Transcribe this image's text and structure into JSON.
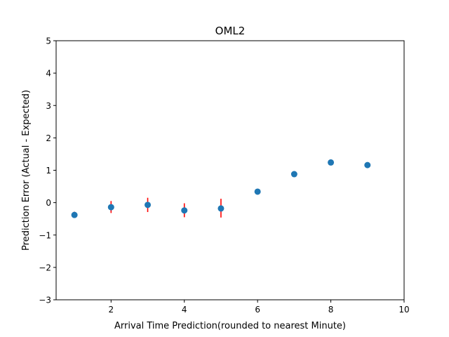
{
  "chart_data": {
    "type": "scatter",
    "title": "OML2",
    "xlabel": "Arrival Time Prediction(rounded to nearest Minute)",
    "ylabel": "Prediction Error (Actual - Expected)",
    "xlim": [
      0.5,
      10
    ],
    "ylim": [
      -3,
      5
    ],
    "x_ticks": [
      2,
      4,
      6,
      8,
      10
    ],
    "y_ticks": [
      -3,
      -2,
      -1,
      0,
      1,
      2,
      3,
      4,
      5
    ],
    "x_tick_labels": [
      "2",
      "4",
      "6",
      "8",
      "10"
    ],
    "y_tick_labels": [
      "−3",
      "−2",
      "−1",
      "0",
      "1",
      "2",
      "3",
      "4",
      "5"
    ],
    "grid": false,
    "point_color": "#1f77b4",
    "errorbar_color": "#ff0000",
    "x": [
      1,
      2,
      3,
      4,
      5,
      6,
      7,
      8,
      9
    ],
    "y": [
      -0.38,
      -0.14,
      -0.07,
      -0.24,
      -0.18,
      0.34,
      0.88,
      1.24,
      1.16
    ],
    "error_bars": [
      {
        "x": 1,
        "low": -0.47,
        "high": -0.28
      },
      {
        "x": 2,
        "low": -0.32,
        "high": 0.05
      },
      {
        "x": 3,
        "low": -0.29,
        "high": 0.15
      },
      {
        "x": 4,
        "low": -0.45,
        "high": -0.02
      },
      {
        "x": 5,
        "low": -0.46,
        "high": 0.12
      }
    ]
  }
}
